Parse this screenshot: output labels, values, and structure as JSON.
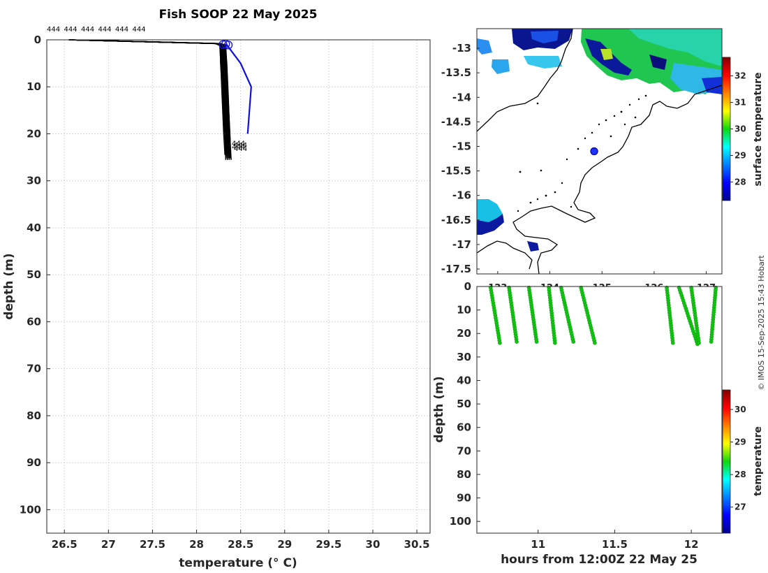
{
  "title": "Fish SOOP 22 May 2025",
  "copyright": "© IMOS 15-Sep-2025 15:43 Hobart",
  "chart_data": [
    {
      "id": "profile",
      "type": "line",
      "title": "Fish SOOP 22 May 2025",
      "xlabel": "temperature (° C)",
      "ylabel": "depth (m)",
      "xlim": [
        26.3,
        30.65
      ],
      "ylim": [
        0,
        105
      ],
      "xticks": [
        "26.5",
        "27",
        "27.5",
        "28",
        "28.5",
        "29",
        "29.5",
        "30",
        "30.5"
      ],
      "yticks": [
        "0",
        "10",
        "20",
        "30",
        "40",
        "50",
        "60",
        "70",
        "80",
        "90",
        "100"
      ],
      "profile_label": "444",
      "series": [
        {
          "name": "blue profile",
          "color": "#1010e0",
          "x": [
            28.32,
            28.34,
            28.36,
            28.5,
            28.62,
            28.58
          ],
          "y": [
            1,
            1,
            1.5,
            5,
            10,
            20
          ]
        },
        {
          "name": "black profiles",
          "color": "#000000",
          "x": [
            26.55,
            28.25,
            28.3,
            28.31,
            28.33,
            28.35,
            28.36
          ],
          "y": [
            0,
            0.8,
            1.2,
            5,
            12,
            20,
            24.5
          ]
        }
      ]
    },
    {
      "id": "map",
      "type": "heatmap",
      "xlabel": "",
      "ylabel": "",
      "xlim": [
        122.6,
        127.3
      ],
      "ylim": [
        -17.6,
        -12.6
      ],
      "xticks": [
        "123",
        "124",
        "125",
        "126",
        "127"
      ],
      "yticks": [
        "-13",
        "-13.5",
        "-14",
        "-14.5",
        "-15",
        "-15.5",
        "-16",
        "-16.5",
        "-17",
        "-17.5"
      ],
      "vessel_position": [
        124.85,
        -15.1
      ],
      "colorbar": {
        "label": "surface temperature",
        "range": [
          27.3,
          32.7
        ],
        "ticks": [
          "28",
          "29",
          "30",
          "31",
          "32"
        ]
      }
    },
    {
      "id": "timeseries",
      "type": "scatter",
      "xlabel": "hours from 12:00Z 22 May 25",
      "ylabel": "depth (m)",
      "xlim": [
        10.6,
        12.2
      ],
      "ylim": [
        0,
        105
      ],
      "xticks": [
        "11",
        "11.5",
        "12"
      ],
      "yticks": [
        "0",
        "10",
        "20",
        "30",
        "40",
        "50",
        "60",
        "70",
        "80",
        "90",
        "100"
      ],
      "point_color": "#12c412",
      "casts": [
        {
          "x0": 10.69,
          "x1": 10.75,
          "bottom": 24
        },
        {
          "x0": 10.81,
          "x1": 10.86,
          "bottom": 23.5
        },
        {
          "x0": 10.94,
          "x1": 10.99,
          "bottom": 23.5
        },
        {
          "x0": 11.07,
          "x1": 11.11,
          "bottom": 24
        },
        {
          "x0": 11.15,
          "x1": 11.23,
          "bottom": 23.5
        },
        {
          "x0": 11.28,
          "x1": 11.37,
          "bottom": 24
        },
        {
          "x0": 11.84,
          "x1": 11.88,
          "bottom": 24
        },
        {
          "x0": 11.92,
          "x1": 12.04,
          "bottom": 24.5
        },
        {
          "x0": 12.0,
          "x1": 12.05,
          "bottom": 24
        },
        {
          "x0": 12.16,
          "x1": 12.13,
          "bottom": 23.5
        }
      ],
      "colorbar": {
        "label": "temperature",
        "range": [
          26.2,
          30.6
        ],
        "ticks": [
          "27",
          "28",
          "29",
          "30"
        ]
      }
    }
  ]
}
